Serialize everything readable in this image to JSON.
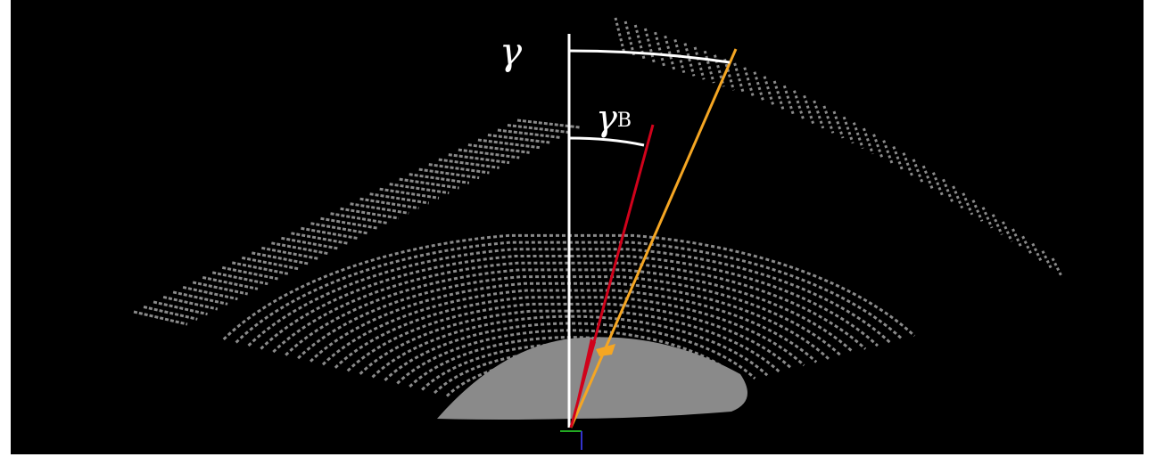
{
  "angle_labels": {
    "gamma": "γ",
    "gamma_b": {
      "symbol": "γ",
      "subscript": "B"
    }
  }
}
